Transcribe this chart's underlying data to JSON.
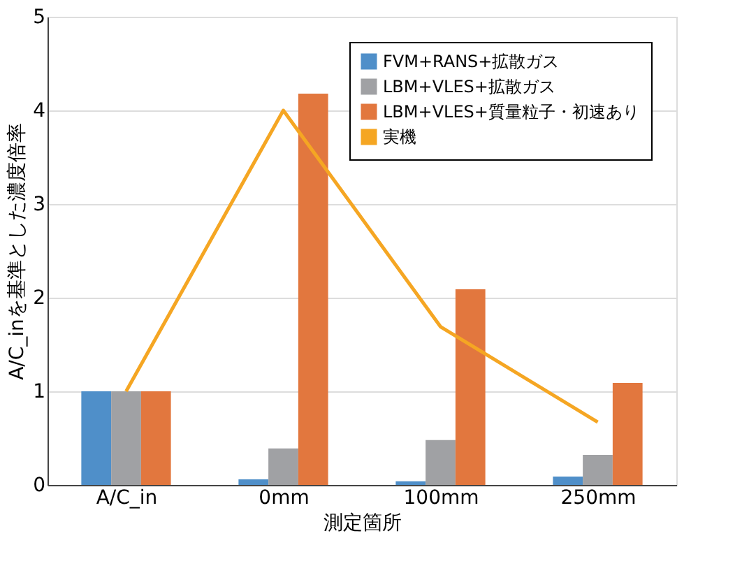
{
  "chart_data": {
    "type": "bar",
    "xlabel": "測定箇所",
    "ylabel": "A/C_inを基準とした濃度倍率",
    "categories": [
      "A/C_in",
      "0mm",
      "100mm",
      "250mm"
    ],
    "series": [
      {
        "name": "FVM+RANS+拡散ガス",
        "color": "#4f8fc9",
        "values": [
          1.0,
          0.06,
          0.04,
          0.09
        ]
      },
      {
        "name": "LBM+VLES+拡散ガス",
        "color": "#a0a1a4",
        "values": [
          1.0,
          0.39,
          0.48,
          0.32
        ]
      },
      {
        "name": "LBM+VLES+質量粒子・初速あり",
        "color": "#e2773e",
        "values": [
          1.0,
          4.18,
          2.09,
          1.09
        ]
      },
      {
        "name": "実機",
        "color": "#f5a623",
        "type": "line",
        "values": [
          1.0,
          4.0,
          1.69,
          0.67
        ]
      }
    ],
    "ylim": [
      0,
      5
    ],
    "yticks": [
      0,
      1,
      2,
      3,
      4,
      5
    ],
    "grid": "y",
    "legend": "top right"
  }
}
